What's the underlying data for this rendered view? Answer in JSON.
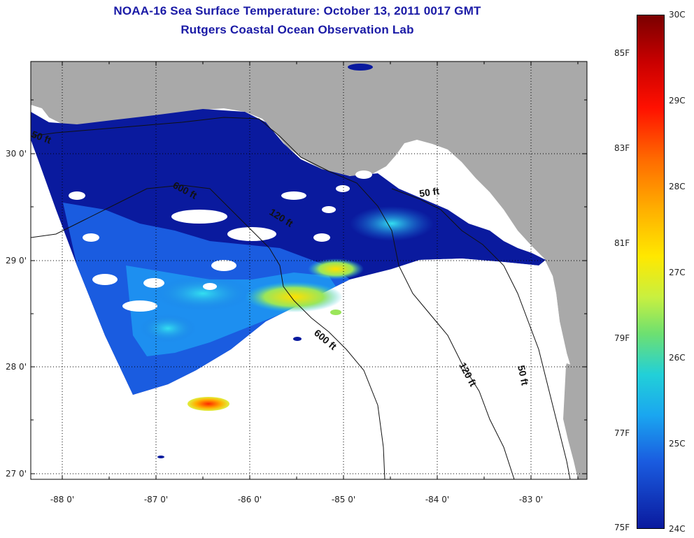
{
  "title": {
    "line1": "NOAA-16 Sea Surface Temperature:  October 13, 2011 0017 GMT",
    "line2": "Rutgers Coastal Ocean Observation Lab"
  },
  "map": {
    "lon_ticks": [
      "-88 0'",
      "-87 0'",
      "-86 0'",
      "-85 0'",
      "-84 0'",
      "-83 0'"
    ],
    "lat_ticks": [
      "30 0'",
      "29 0'",
      "28 0'",
      "27 0'"
    ],
    "contour_labels": [
      "50 ft",
      "600 ft",
      "120 ft",
      "50 ft",
      "600 ft",
      "120 ft",
      "50 ft"
    ],
    "colors": {
      "land": "#a9a9a9",
      "cold": "#0a1a9e",
      "cloud": "#ffffff",
      "grid": "#000000"
    }
  },
  "colorbar": {
    "celsius": [
      "30C",
      "29C",
      "28C",
      "27C",
      "26C",
      "25C",
      "24C"
    ],
    "fahrenheit": [
      "85F",
      "83F",
      "81F",
      "79F",
      "77F",
      "75F"
    ],
    "min_c": 24,
    "max_c": 30
  }
}
